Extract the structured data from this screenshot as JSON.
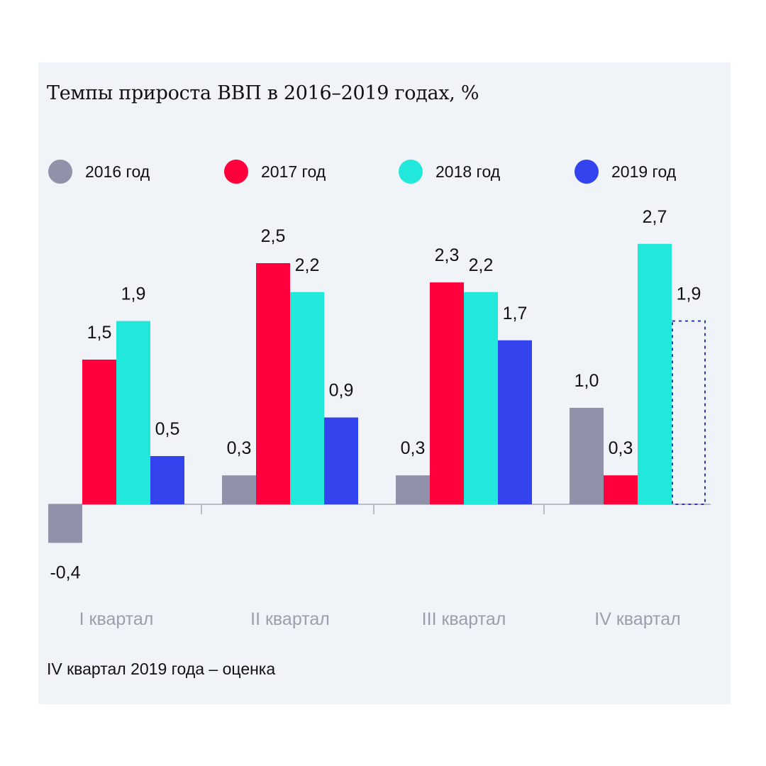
{
  "chart_data": {
    "type": "bar",
    "title": "Темпы прироста ВВП в 2016–2019 годах, %",
    "categories": [
      "I квартал",
      "II квартал",
      "III квартал",
      "IV квартал"
    ],
    "series": [
      {
        "name": "2016 год",
        "color": "#8f92a8",
        "values": [
          -0.4,
          0.3,
          0.3,
          1.0
        ],
        "labels": [
          "-0,4",
          "0,3",
          "0,3",
          "1,0"
        ]
      },
      {
        "name": "2017 год",
        "color": "#ff003c",
        "values": [
          1.5,
          2.5,
          2.3,
          0.3
        ],
        "labels": [
          "1,5",
          "2,5",
          "2,3",
          "0,3"
        ]
      },
      {
        "name": "2018 год",
        "color": "#22e8dc",
        "values": [
          1.9,
          2.2,
          2.2,
          2.7
        ],
        "labels": [
          "1,9",
          "2,2",
          "2,2",
          "2,7"
        ]
      },
      {
        "name": "2019 год",
        "color": "#3344ee",
        "values": [
          0.5,
          0.9,
          1.7,
          1.9
        ],
        "labels": [
          "0,5",
          "0,9",
          "1,7",
          "1,9"
        ],
        "estimated": [
          false,
          false,
          false,
          true
        ]
      }
    ],
    "note": "IV квартал 2019 года – оценка",
    "legend_position": "top",
    "grid": false
  }
}
